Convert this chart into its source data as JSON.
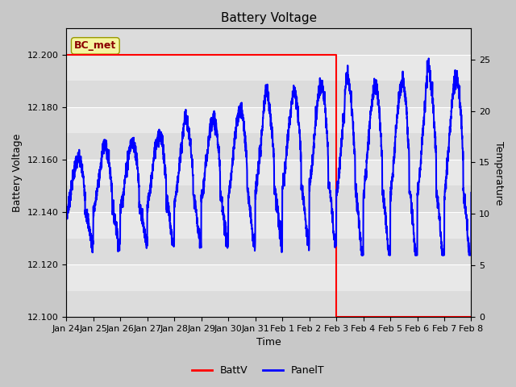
{
  "title": "Battery Voltage",
  "xlabel": "Time",
  "ylabel_left": "Battery Voltage",
  "ylabel_right": "Temperature",
  "ylim_left": [
    12.1,
    12.21
  ],
  "ylim_right": [
    0,
    28
  ],
  "plot_bg_color": "#e8e8e8",
  "battv_color": "red",
  "panelt_color": "blue",
  "annotation_text": "BC_met",
  "annotation_color": "#8b0000",
  "annotation_bg": "#f5f5a0",
  "xtick_labels": [
    "Jan 24",
    "Jan 25",
    "Jan 26",
    "Jan 27",
    "Jan 28",
    "Jan 29",
    "Jan 30",
    "Jan 31",
    "Feb 1",
    "Feb 2",
    "Feb 3",
    "Feb 4",
    "Feb 5",
    "Feb 6",
    "Feb 7",
    "Feb 8"
  ],
  "legend_labels": [
    "BattV",
    "PanelT"
  ],
  "fig_bg": "#c8c8c8",
  "band_colors": [
    "#dcdcdc",
    "#e8e8e8"
  ],
  "n_days": 15
}
